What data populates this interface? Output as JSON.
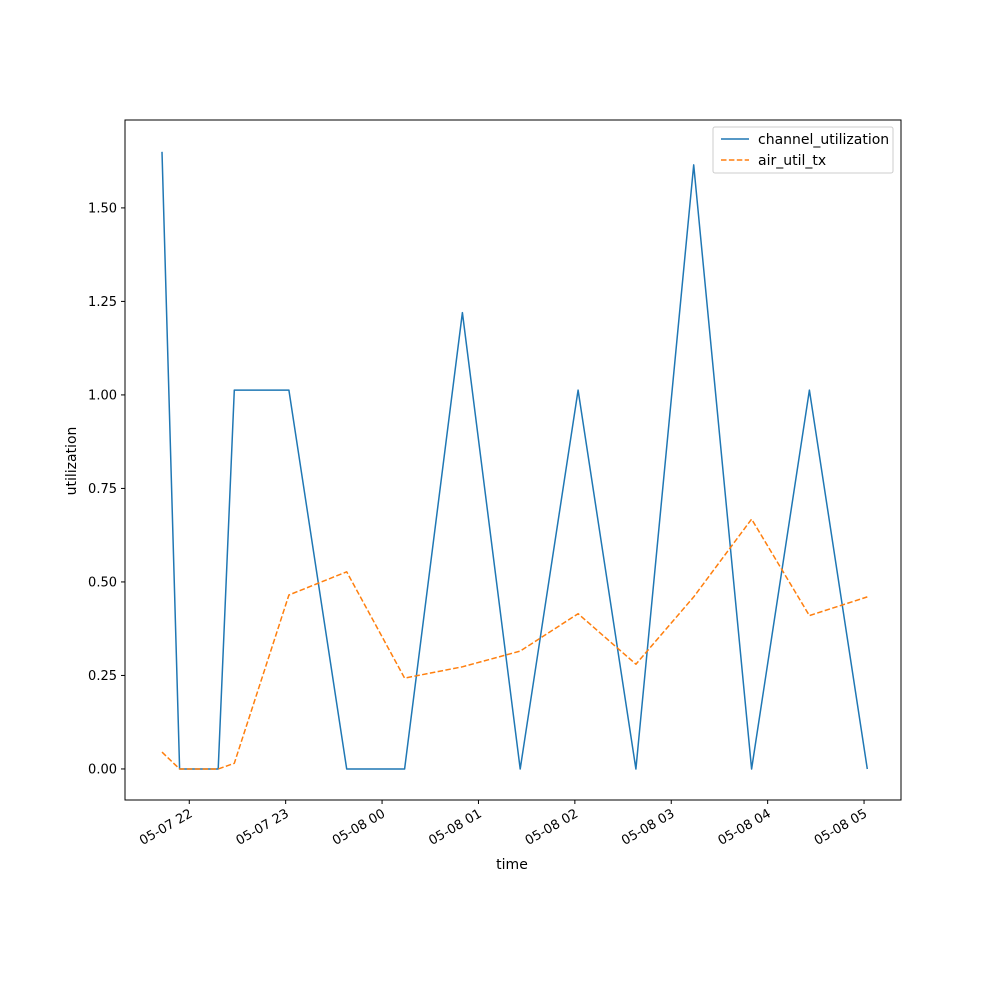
{
  "chart_data": {
    "type": "line",
    "xlabel": "time",
    "ylabel": "utilization",
    "x_ticks": [
      "05-07 22",
      "05-07 23",
      "05-08 00",
      "05-08 01",
      "05-08 02",
      "05-08 03",
      "05-08 04",
      "05-08 05"
    ],
    "y_ticks": [
      "0.00",
      "0.25",
      "0.50",
      "0.75",
      "1.00",
      "1.25",
      "1.50"
    ],
    "xlim": [
      "05-07 21:20",
      "05-08 05:23"
    ],
    "ylim": [
      -0.083,
      1.735
    ],
    "grid": false,
    "legend_position": "top-right",
    "series": [
      {
        "name": "channel_utilization",
        "color": "#1f77b4",
        "style": "solid",
        "points": [
          [
            "05-07 21:43",
            1.65
          ],
          [
            "05-07 21:54",
            0.0
          ],
          [
            "05-07 22:18",
            0.0
          ],
          [
            "05-07 22:28",
            1.013
          ],
          [
            "05-07 23:02",
            1.013
          ],
          [
            "05-07 23:38",
            0.0
          ],
          [
            "05-08 00:14",
            0.0
          ],
          [
            "05-08 00:50",
            1.22
          ],
          [
            "05-08 01:26",
            0.0
          ],
          [
            "05-08 02:02",
            1.013
          ],
          [
            "05-08 02:38",
            0.0
          ],
          [
            "05-08 03:14",
            1.615
          ],
          [
            "05-08 03:50",
            0.0
          ],
          [
            "05-08 04:26",
            1.013
          ],
          [
            "05-08 05:02",
            0.0
          ]
        ]
      },
      {
        "name": "air_util_tx",
        "color": "#ff7f0e",
        "style": "dashed",
        "points": [
          [
            "05-07 21:43",
            0.045
          ],
          [
            "05-07 21:54",
            0.0
          ],
          [
            "05-07 22:18",
            0.0
          ],
          [
            "05-07 22:28",
            0.015
          ],
          [
            "05-07 23:02",
            0.465
          ],
          [
            "05-07 23:38",
            0.527
          ],
          [
            "05-08 00:14",
            0.243
          ],
          [
            "05-08 00:50",
            0.273
          ],
          [
            "05-08 01:26",
            0.315
          ],
          [
            "05-08 02:02",
            0.415
          ],
          [
            "05-08 02:38",
            0.28
          ],
          [
            "05-08 03:14",
            0.46
          ],
          [
            "05-08 03:50",
            0.668
          ],
          [
            "05-08 04:26",
            0.41
          ],
          [
            "05-08 05:02",
            0.46
          ]
        ]
      }
    ]
  }
}
